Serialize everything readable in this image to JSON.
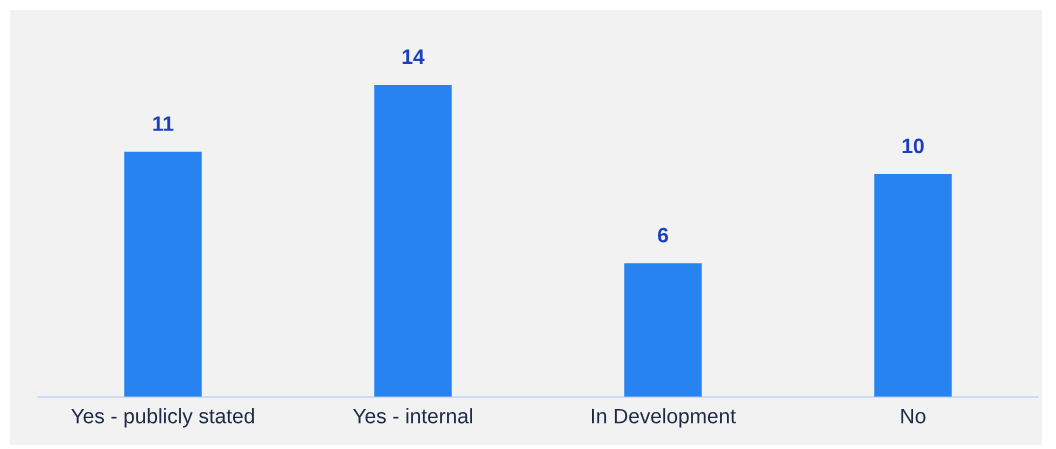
{
  "chart_data": {
    "type": "bar",
    "categories": [
      "Yes - publicly stated",
      "Yes - internal",
      "In Development",
      "No"
    ],
    "values": [
      11,
      14,
      6,
      10
    ],
    "color": "#2683f0",
    "data_labels": true
  }
}
